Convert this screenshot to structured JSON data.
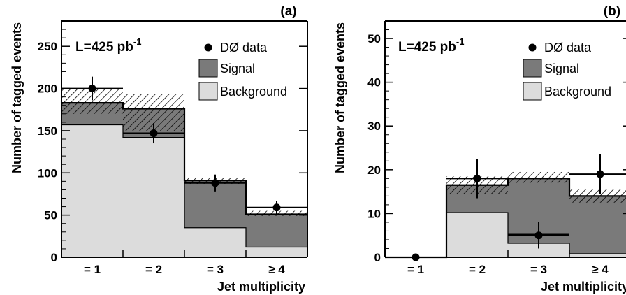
{
  "colors": {
    "signal": "#7a7a7a",
    "background": "#dcdcdc",
    "axis": "#000000",
    "data": "#000000"
  },
  "chart_data": [
    {
      "type": "bar",
      "panel_label": "(a)",
      "luminosity": "L=425 pb",
      "luminosity_exp": "-1",
      "xlabel": "Jet multiplicity",
      "ylabel": "Number of tagged events",
      "categories": [
        "= 1",
        "= 2",
        "= 3",
        "≥ 4"
      ],
      "ylim": [
        0,
        280
      ],
      "yticks": [
        0,
        50,
        100,
        150,
        200,
        250
      ],
      "legend": [
        "DØ data",
        "Signal",
        "Background"
      ],
      "series": [
        {
          "name": "Background",
          "values": [
            157,
            142,
            35,
            12
          ]
        },
        {
          "name": "Signal",
          "values": [
            183,
            176,
            91,
            51
          ]
        }
      ],
      "data_points": {
        "name": "DØ data",
        "values": [
          200,
          147,
          88,
          59
        ],
        "errors": [
          14,
          12,
          10,
          8
        ]
      },
      "uncertainty_band": {
        "low": [
          170,
          150,
          87,
          49
        ],
        "high": [
          200,
          193,
          94,
          55
        ]
      }
    },
    {
      "type": "bar",
      "panel_label": "(b)",
      "luminosity": "L=425 pb",
      "luminosity_exp": "-1",
      "xlabel": "Jet multiplicity",
      "ylabel": "Number of tagged events",
      "categories": [
        "= 1",
        "= 2",
        "= 3",
        "≥ 4"
      ],
      "ylim": [
        0,
        54
      ],
      "yticks": [
        0,
        10,
        20,
        30,
        40,
        50
      ],
      "legend": [
        "DØ data",
        "Signal",
        "Background"
      ],
      "series": [
        {
          "name": "Background",
          "values": [
            0,
            10.2,
            3.2,
            0.8
          ]
        },
        {
          "name": "Signal",
          "values": [
            0,
            16.5,
            18.0,
            14.0
          ]
        }
      ],
      "data_points": {
        "name": "DØ data",
        "values": [
          0,
          18,
          5,
          19
        ],
        "errors": [
          0,
          4.5,
          3,
          4.5
        ]
      },
      "secondary_line": [
        0,
        0,
        5.2,
        0
      ],
      "uncertainty_band": {
        "low": [
          0,
          14.5,
          17.0,
          12.5
        ],
        "high": [
          0,
          18.5,
          19.5,
          15.5
        ]
      }
    }
  ]
}
